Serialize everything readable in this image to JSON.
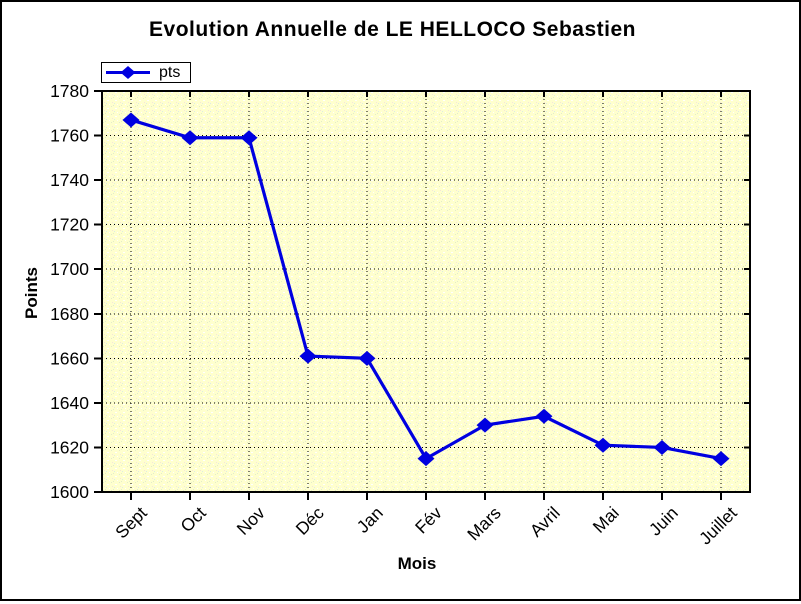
{
  "frame": {
    "outer_border_color": "#000000",
    "background_color": "#ffffff"
  },
  "chart_data": {
    "type": "line",
    "title": "Evolution Annuelle de LE HELLOCO Sebastien",
    "xlabel": "Mois",
    "ylabel": "Points",
    "categories": [
      "Sept",
      "Oct",
      "Nov",
      "Déc",
      "Jan",
      "Fév",
      "Mars",
      "Avril",
      "Mai",
      "Juin",
      "Juillet"
    ],
    "series": [
      {
        "name": "pts",
        "values": [
          1767,
          1759,
          1759,
          1661,
          1660,
          1615,
          1630,
          1634,
          1621,
          1620,
          1615
        ]
      }
    ],
    "ylim": [
      1600,
      1780
    ],
    "ytick_step": 20,
    "yticks": [
      1600,
      1620,
      1640,
      1660,
      1680,
      1700,
      1720,
      1740,
      1760,
      1780
    ],
    "grid": "dotted-both-axes",
    "legend_position": "top-left",
    "legend_entries": [
      "pts"
    ],
    "x_tick_label_rotation_deg": -45,
    "style": {
      "line_color": "#0000e0",
      "marker": "diamond",
      "marker_color": "#0000e0",
      "plot_bg_color": "#ffffce",
      "plot_bg_dither_colors": [
        "#ffffff",
        "#e2ecca",
        "#f4e4dc",
        "#dcebe6"
      ],
      "grid_color": "#000000",
      "axis_color": "#000000",
      "text_color": "#000000"
    }
  }
}
